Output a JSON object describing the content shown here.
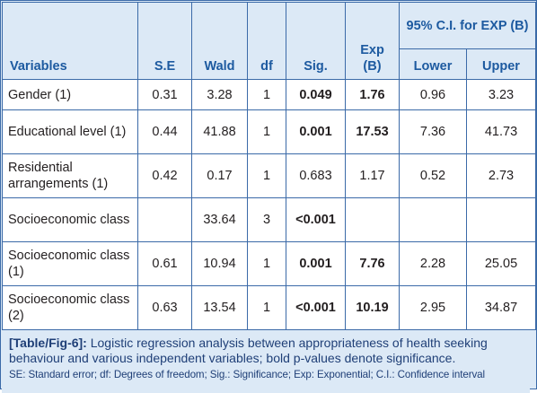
{
  "table": {
    "headers": {
      "variables": "Variables",
      "se": "S.E",
      "wald": "Wald",
      "df": "df",
      "sig": "Sig.",
      "exp_b": "Exp (B)",
      "ci_group": "95% C.I. for EXP (B)",
      "lower": "Lower",
      "upper": "Upper"
    },
    "rows": [
      {
        "variable": "Gender (1)",
        "se": "0.31",
        "wald": "3.28",
        "df": "1",
        "sig": "0.049",
        "exp_b": "1.76",
        "lower": "0.96",
        "upper": "3.23"
      },
      {
        "variable": "Educational level (1)",
        "se": "0.44",
        "wald": "41.88",
        "df": "1",
        "sig": "0.001",
        "exp_b": "17.53",
        "lower": "7.36",
        "upper": "41.73"
      },
      {
        "variable": "Residential arrangements (1)",
        "se": "0.42",
        "wald": "0.17",
        "df": "1",
        "sig": "0.683",
        "exp_b": "1.17",
        "lower": "0.52",
        "upper": "2.73"
      },
      {
        "variable": "Socioeconomic class",
        "se": "",
        "wald": "33.64",
        "df": "3",
        "sig": "<0.001",
        "exp_b": "",
        "lower": "",
        "upper": ""
      },
      {
        "variable": "Socioeconomic class (1)",
        "se": "0.61",
        "wald": "10.94",
        "df": "1",
        "sig": "0.001",
        "exp_b": "7.76",
        "lower": "2.28",
        "upper": "25.05"
      },
      {
        "variable": "Socioeconomic class (2)",
        "se": "0.63",
        "wald": "13.54",
        "df": "1",
        "sig": "<0.001",
        "exp_b": "10.19",
        "lower": "2.95",
        "upper": "34.87"
      }
    ],
    "bold_cells": [
      "sig row 0,1,3,4,5",
      "exp_b row 0,1,4,5"
    ]
  },
  "caption": {
    "label": "[Table/Fig-6]:",
    "text": "Logistic regression analysis between appropriateness of health seeking behaviour and various independent variables; bold p-values denote significance.",
    "note": "SE: Standard error; df: Degrees of freedom; Sig.: Significance; Exp: Exponential; C.I.: Confidence interval"
  },
  "colors": {
    "border": "#3b6aa8",
    "header_bg": "#dce9f6",
    "header_text": "#1d5aa0",
    "caption_text": "#1f3f77"
  }
}
